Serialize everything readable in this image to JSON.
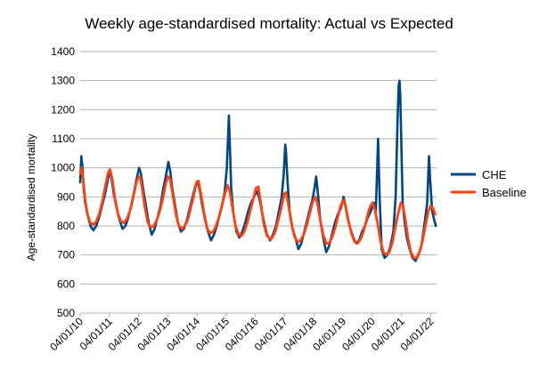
{
  "chart_data": {
    "type": "line",
    "title": "Weekly age-standardised mortality: Actual vs Expected",
    "xlabel": "",
    "ylabel": "Age-standardised mortality",
    "ylim": [
      500,
      1400
    ],
    "yticks": [
      500,
      600,
      700,
      800,
      900,
      1000,
      1100,
      1200,
      1300,
      1400
    ],
    "x_ticks": [
      "04/01/10",
      "04/01/11",
      "04/01/12",
      "04/01/13",
      "04/01/14",
      "04/01/15",
      "04/01/16",
      "04/01/17",
      "04/01/18",
      "04/01/19",
      "04/01/20",
      "04/01/21",
      "04/01/22"
    ],
    "x_range": [
      2010.0,
      2022.2
    ],
    "grid": "horizontal",
    "legend_position": "right",
    "series": [
      {
        "name": "CHE",
        "color": "#004586",
        "points": [
          [
            2010.0,
            950
          ],
          [
            2010.04,
            1040
          ],
          [
            2010.08,
            1000
          ],
          [
            2010.12,
            930
          ],
          [
            2010.17,
            880
          ],
          [
            2010.25,
            840
          ],
          [
            2010.35,
            800
          ],
          [
            2010.45,
            785
          ],
          [
            2010.55,
            800
          ],
          [
            2010.65,
            830
          ],
          [
            2010.75,
            870
          ],
          [
            2010.85,
            910
          ],
          [
            2010.95,
            960
          ],
          [
            2011.02,
            990
          ],
          [
            2011.08,
            960
          ],
          [
            2011.15,
            910
          ],
          [
            2011.25,
            860
          ],
          [
            2011.35,
            820
          ],
          [
            2011.45,
            790
          ],
          [
            2011.55,
            800
          ],
          [
            2011.65,
            830
          ],
          [
            2011.75,
            870
          ],
          [
            2011.85,
            920
          ],
          [
            2011.95,
            970
          ],
          [
            2012.02,
            1000
          ],
          [
            2012.08,
            980
          ],
          [
            2012.15,
            930
          ],
          [
            2012.25,
            870
          ],
          [
            2012.35,
            810
          ],
          [
            2012.45,
            770
          ],
          [
            2012.55,
            790
          ],
          [
            2012.65,
            830
          ],
          [
            2012.75,
            870
          ],
          [
            2012.85,
            930
          ],
          [
            2012.95,
            980
          ],
          [
            2013.02,
            1020
          ],
          [
            2013.08,
            990
          ],
          [
            2013.15,
            930
          ],
          [
            2013.25,
            870
          ],
          [
            2013.35,
            810
          ],
          [
            2013.45,
            780
          ],
          [
            2013.55,
            790
          ],
          [
            2013.65,
            820
          ],
          [
            2013.75,
            860
          ],
          [
            2013.85,
            900
          ],
          [
            2013.95,
            940
          ],
          [
            2014.03,
            950
          ],
          [
            2014.1,
            920
          ],
          [
            2014.18,
            870
          ],
          [
            2014.28,
            820
          ],
          [
            2014.38,
            780
          ],
          [
            2014.48,
            750
          ],
          [
            2014.58,
            770
          ],
          [
            2014.68,
            800
          ],
          [
            2014.78,
            840
          ],
          [
            2014.88,
            880
          ],
          [
            2014.95,
            920
          ],
          [
            2015.02,
            1000
          ],
          [
            2015.06,
            1100
          ],
          [
            2015.09,
            1180
          ],
          [
            2015.12,
            1090
          ],
          [
            2015.17,
            930
          ],
          [
            2015.25,
            840
          ],
          [
            2015.35,
            780
          ],
          [
            2015.45,
            760
          ],
          [
            2015.55,
            780
          ],
          [
            2015.65,
            810
          ],
          [
            2015.75,
            850
          ],
          [
            2015.85,
            880
          ],
          [
            2015.95,
            900
          ],
          [
            2016.05,
            920
          ],
          [
            2016.12,
            900
          ],
          [
            2016.2,
            860
          ],
          [
            2016.3,
            810
          ],
          [
            2016.4,
            770
          ],
          [
            2016.5,
            750
          ],
          [
            2016.6,
            770
          ],
          [
            2016.7,
            800
          ],
          [
            2016.8,
            850
          ],
          [
            2016.9,
            900
          ],
          [
            2016.97,
            980
          ],
          [
            2017.02,
            1080
          ],
          [
            2017.05,
            1050
          ],
          [
            2017.1,
            950
          ],
          [
            2017.17,
            850
          ],
          [
            2017.27,
            790
          ],
          [
            2017.37,
            760
          ],
          [
            2017.47,
            720
          ],
          [
            2017.57,
            740
          ],
          [
            2017.67,
            780
          ],
          [
            2017.77,
            820
          ],
          [
            2017.87,
            860
          ],
          [
            2017.95,
            890
          ],
          [
            2018.02,
            930
          ],
          [
            2018.08,
            970
          ],
          [
            2018.15,
            900
          ],
          [
            2018.22,
            820
          ],
          [
            2018.32,
            760
          ],
          [
            2018.42,
            710
          ],
          [
            2018.52,
            730
          ],
          [
            2018.62,
            770
          ],
          [
            2018.72,
            810
          ],
          [
            2018.82,
            840
          ],
          [
            2018.92,
            860
          ],
          [
            2019.02,
            900
          ],
          [
            2019.08,
            870
          ],
          [
            2019.15,
            830
          ],
          [
            2019.25,
            790
          ],
          [
            2019.35,
            760
          ],
          [
            2019.45,
            740
          ],
          [
            2019.55,
            750
          ],
          [
            2019.65,
            780
          ],
          [
            2019.75,
            800
          ],
          [
            2019.85,
            830
          ],
          [
            2019.95,
            850
          ],
          [
            2020.05,
            880
          ],
          [
            2020.12,
            850
          ],
          [
            2020.2,
            1100
          ],
          [
            2020.25,
            900
          ],
          [
            2020.32,
            720
          ],
          [
            2020.42,
            690
          ],
          [
            2020.52,
            700
          ],
          [
            2020.62,
            730
          ],
          [
            2020.72,
            780
          ],
          [
            2020.8,
            900
          ],
          [
            2020.86,
            1150
          ],
          [
            2020.9,
            1280
          ],
          [
            2020.93,
            1300
          ],
          [
            2020.96,
            1250
          ],
          [
            2021.0,
            1050
          ],
          [
            2021.04,
            880
          ],
          [
            2021.1,
            820
          ],
          [
            2021.18,
            760
          ],
          [
            2021.28,
            720
          ],
          [
            2021.38,
            690
          ],
          [
            2021.48,
            680
          ],
          [
            2021.58,
            700
          ],
          [
            2021.68,
            730
          ],
          [
            2021.78,
            800
          ],
          [
            2021.88,
            880
          ],
          [
            2021.94,
            1040
          ],
          [
            2021.98,
            960
          ],
          [
            2022.05,
            850
          ],
          [
            2022.12,
            820
          ],
          [
            2022.18,
            800
          ]
        ]
      },
      {
        "name": "Baseline",
        "color": "#ff420e",
        "points": [
          [
            2010.0,
            980
          ],
          [
            2010.05,
            1000
          ],
          [
            2010.1,
            960
          ],
          [
            2010.17,
            890
          ],
          [
            2010.25,
            840
          ],
          [
            2010.35,
            810
          ],
          [
            2010.45,
            805
          ],
          [
            2010.55,
            815
          ],
          [
            2010.65,
            840
          ],
          [
            2010.75,
            880
          ],
          [
            2010.85,
            930
          ],
          [
            2010.95,
            980
          ],
          [
            2011.02,
            995
          ],
          [
            2011.1,
            960
          ],
          [
            2011.2,
            890
          ],
          [
            2011.3,
            840
          ],
          [
            2011.4,
            815
          ],
          [
            2011.5,
            810
          ],
          [
            2011.6,
            825
          ],
          [
            2011.7,
            850
          ],
          [
            2011.8,
            890
          ],
          [
            2011.9,
            940
          ],
          [
            2011.98,
            965
          ],
          [
            2012.05,
            970
          ],
          [
            2012.12,
            930
          ],
          [
            2012.22,
            860
          ],
          [
            2012.32,
            810
          ],
          [
            2012.42,
            795
          ],
          [
            2012.52,
            800
          ],
          [
            2012.62,
            820
          ],
          [
            2012.72,
            850
          ],
          [
            2012.82,
            890
          ],
          [
            2012.92,
            940
          ],
          [
            2013.0,
            970
          ],
          [
            2013.08,
            960
          ],
          [
            2013.18,
            900
          ],
          [
            2013.28,
            840
          ],
          [
            2013.38,
            800
          ],
          [
            2013.48,
            790
          ],
          [
            2013.58,
            800
          ],
          [
            2013.68,
            820
          ],
          [
            2013.78,
            860
          ],
          [
            2013.88,
            900
          ],
          [
            2013.98,
            950
          ],
          [
            2014.05,
            955
          ],
          [
            2014.15,
            900
          ],
          [
            2014.25,
            840
          ],
          [
            2014.35,
            790
          ],
          [
            2014.45,
            775
          ],
          [
            2014.55,
            780
          ],
          [
            2014.65,
            800
          ],
          [
            2014.75,
            830
          ],
          [
            2014.85,
            870
          ],
          [
            2014.95,
            910
          ],
          [
            2015.05,
            940
          ],
          [
            2015.12,
            920
          ],
          [
            2015.22,
            860
          ],
          [
            2015.32,
            800
          ],
          [
            2015.42,
            770
          ],
          [
            2015.52,
            765
          ],
          [
            2015.62,
            780
          ],
          [
            2015.72,
            810
          ],
          [
            2015.82,
            850
          ],
          [
            2015.92,
            890
          ],
          [
            2016.02,
            930
          ],
          [
            2016.1,
            935
          ],
          [
            2016.18,
            880
          ],
          [
            2016.28,
            810
          ],
          [
            2016.38,
            770
          ],
          [
            2016.48,
            755
          ],
          [
            2016.58,
            760
          ],
          [
            2016.68,
            780
          ],
          [
            2016.78,
            820
          ],
          [
            2016.88,
            860
          ],
          [
            2016.98,
            910
          ],
          [
            2017.05,
            915
          ],
          [
            2017.15,
            860
          ],
          [
            2017.25,
            800
          ],
          [
            2017.35,
            760
          ],
          [
            2017.45,
            745
          ],
          [
            2017.55,
            750
          ],
          [
            2017.65,
            770
          ],
          [
            2017.75,
            800
          ],
          [
            2017.85,
            840
          ],
          [
            2017.95,
            880
          ],
          [
            2018.05,
            900
          ],
          [
            2018.12,
            880
          ],
          [
            2018.22,
            820
          ],
          [
            2018.32,
            770
          ],
          [
            2018.42,
            740
          ],
          [
            2018.52,
            740
          ],
          [
            2018.62,
            760
          ],
          [
            2018.72,
            790
          ],
          [
            2018.82,
            830
          ],
          [
            2018.92,
            870
          ],
          [
            2019.02,
            890
          ],
          [
            2019.1,
            860
          ],
          [
            2019.2,
            810
          ],
          [
            2019.3,
            770
          ],
          [
            2019.4,
            745
          ],
          [
            2019.5,
            740
          ],
          [
            2019.6,
            755
          ],
          [
            2019.7,
            780
          ],
          [
            2019.8,
            820
          ],
          [
            2019.9,
            860
          ],
          [
            2020.0,
            880
          ],
          [
            2020.08,
            860
          ],
          [
            2020.18,
            810
          ],
          [
            2020.28,
            750
          ],
          [
            2020.38,
            710
          ],
          [
            2020.48,
            700
          ],
          [
            2020.58,
            710
          ],
          [
            2020.68,
            740
          ],
          [
            2020.78,
            790
          ],
          [
            2020.88,
            840
          ],
          [
            2020.98,
            880
          ],
          [
            2021.05,
            870
          ],
          [
            2021.12,
            830
          ],
          [
            2021.22,
            760
          ],
          [
            2021.32,
            710
          ],
          [
            2021.42,
            690
          ],
          [
            2021.52,
            690
          ],
          [
            2021.62,
            710
          ],
          [
            2021.72,
            750
          ],
          [
            2021.82,
            800
          ],
          [
            2021.92,
            850
          ],
          [
            2022.0,
            870
          ],
          [
            2022.08,
            860
          ],
          [
            2022.15,
            840
          ]
        ]
      }
    ]
  }
}
